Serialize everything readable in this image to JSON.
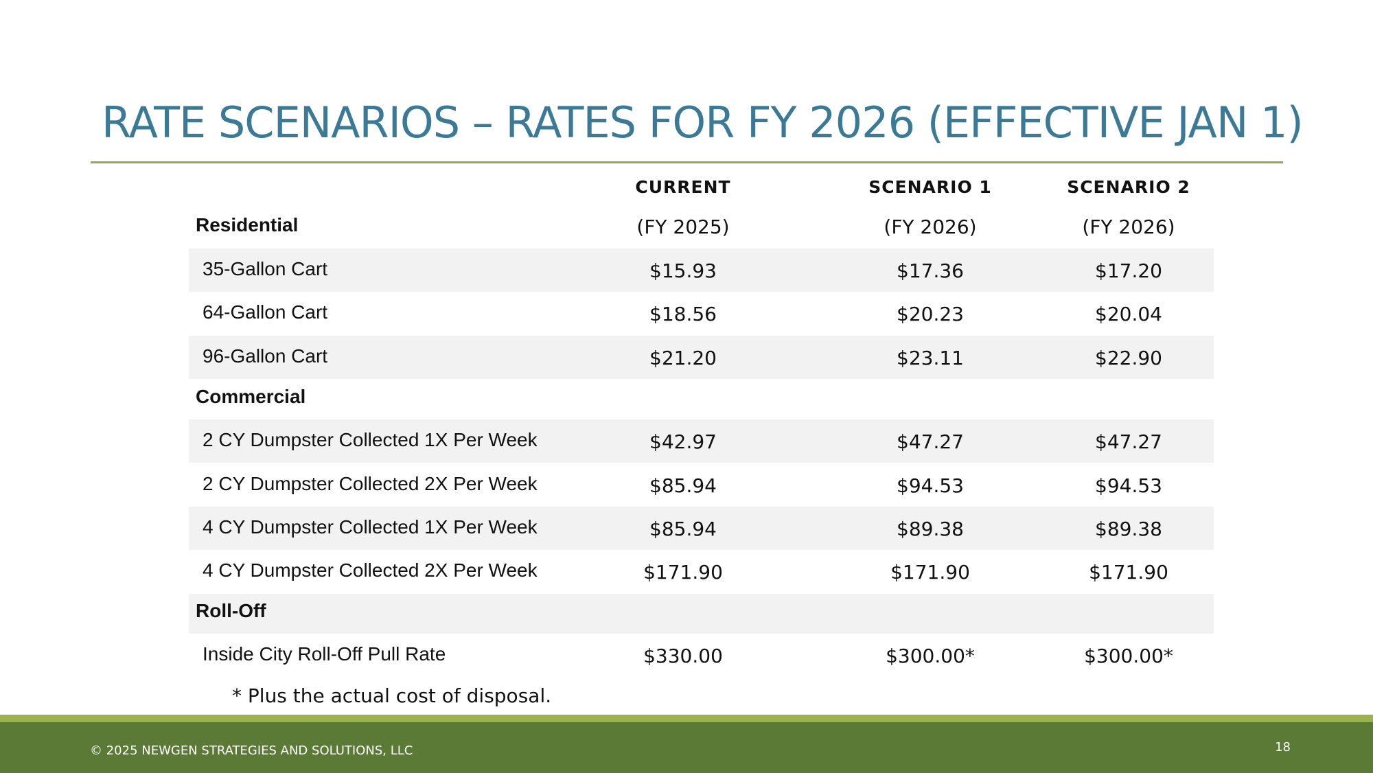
{
  "title": "RATE SCENARIOS – RATES FOR FY 2026 (EFFECTIVE JAN 1)",
  "columns": [
    {
      "heading": "CURRENT",
      "sub": "(FY 2025)"
    },
    {
      "heading": "SCENARIO 1",
      "sub": "(FY 2026)"
    },
    {
      "heading": "SCENARIO 2",
      "sub": "(FY 2026)"
    }
  ],
  "sections": {
    "residential": {
      "label": "Residential",
      "rows": [
        {
          "label": "35-Gallon Cart",
          "values": [
            "$15.93",
            "$17.36",
            "$17.20"
          ]
        },
        {
          "label": "64-Gallon Cart",
          "values": [
            "$18.56",
            "$20.23",
            "$20.04"
          ]
        },
        {
          "label": "96-Gallon Cart",
          "values": [
            "$21.20",
            "$23.11",
            "$22.90"
          ]
        }
      ]
    },
    "commercial": {
      "label": "Commercial",
      "rows": [
        {
          "label": "2 CY Dumpster Collected 1X Per Week",
          "values": [
            "$42.97",
            "$47.27",
            "$47.27"
          ]
        },
        {
          "label": "2 CY Dumpster Collected 2X Per Week",
          "values": [
            "$85.94",
            "$94.53",
            "$94.53"
          ]
        },
        {
          "label": "4 CY Dumpster Collected 1X Per Week",
          "values": [
            "$85.94",
            "$89.38",
            "$89.38"
          ]
        },
        {
          "label": "4 CY Dumpster Collected 2X Per Week",
          "values": [
            "$171.90",
            "$171.90",
            "$171.90"
          ]
        }
      ]
    },
    "rolloff": {
      "label": "Roll-Off",
      "rows": [
        {
          "label": "Inside City Roll-Off Pull Rate",
          "values": [
            "$330.00",
            "$300.00*",
            "$300.00*"
          ]
        }
      ]
    }
  },
  "footnote": "* Plus the actual cost of disposal.",
  "footer": {
    "copyright": "© 2025 NEWGEN STRATEGIES AND SOLUTIONS, LLC",
    "page_number": "18"
  },
  "colors": {
    "title": "#3b7a96",
    "rule": "#9aa25a",
    "footer_band": "#5a7a35",
    "footer_accent": "#9ab34f",
    "row_shade": "#f2f2f2"
  }
}
